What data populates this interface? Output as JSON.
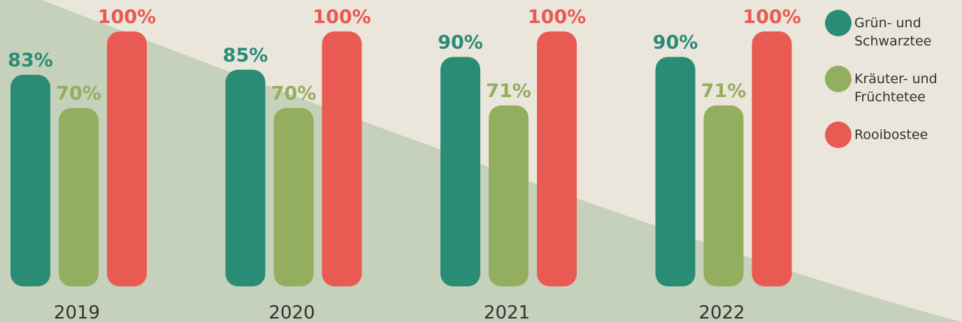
{
  "chart_data": {
    "type": "bar",
    "categories": [
      "2019",
      "2020",
      "2021",
      "2022"
    ],
    "series": [
      {
        "name": "Grün- und Schwarztee",
        "color": "#2b8c76",
        "values": [
          83,
          85,
          90,
          90
        ],
        "value_labels": [
          "83%",
          "85%",
          "90%",
          "90%"
        ]
      },
      {
        "name": "Kräuter- und Früchtetee",
        "color": "#94ae60",
        "values": [
          70,
          70,
          71,
          71
        ],
        "value_labels": [
          "70%",
          "70%",
          "71%",
          "71%"
        ]
      },
      {
        "name": "Rooibostee",
        "color": "#e95a52",
        "values": [
          100,
          100,
          100,
          100
        ],
        "value_labels": [
          "100%",
          "100%",
          "100%",
          "100%"
        ]
      }
    ]
  }
}
